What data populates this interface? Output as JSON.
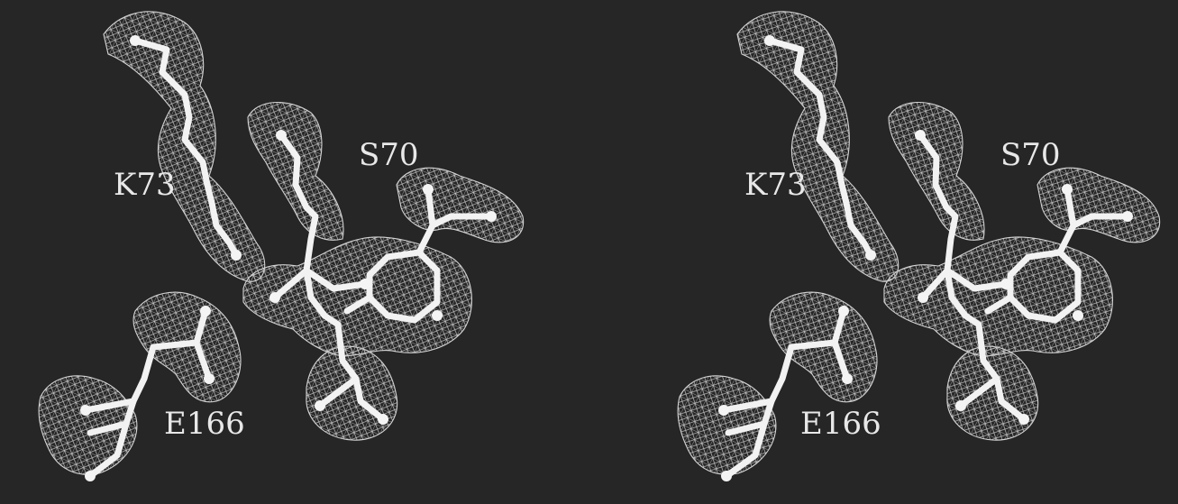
{
  "figure": {
    "background": "#262626",
    "mesh_color": "#d9d9d9",
    "stick_color": "#f2f2f2",
    "labels": {
      "k73": "K73",
      "s70": "S70",
      "e166": "E166"
    },
    "panels": [
      "left-eye-view",
      "right-eye-view"
    ]
  }
}
